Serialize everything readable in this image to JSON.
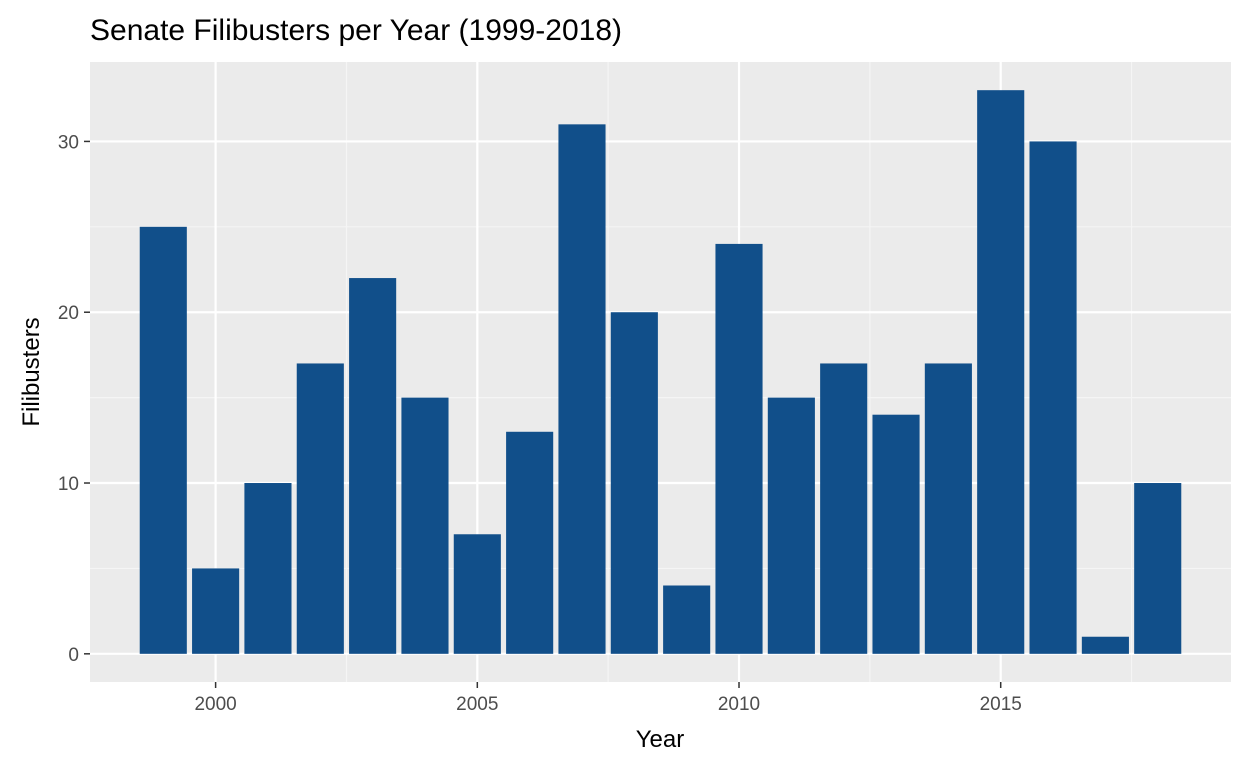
{
  "colors": {
    "panel_background": "#ebebeb",
    "grid_major": "#ffffff",
    "grid_minor": "#f5f5f5",
    "bar_fill": "#114f8a",
    "tick_mark": "#333333"
  },
  "chart_data": {
    "type": "bar",
    "title": "Senate Filibusters per Year (1999-2018)",
    "xlabel": "Year",
    "ylabel": "Filibusters",
    "x": [
      1999,
      2000,
      2001,
      2002,
      2003,
      2004,
      2005,
      2006,
      2007,
      2008,
      2009,
      2010,
      2011,
      2012,
      2013,
      2014,
      2015,
      2016,
      2017,
      2018
    ],
    "values": [
      25,
      5,
      10,
      17,
      22,
      15,
      7,
      13,
      31,
      20,
      4,
      24,
      15,
      17,
      14,
      17,
      33,
      30,
      1,
      10
    ],
    "x_ticks": [
      2000,
      2005,
      2010,
      2015
    ],
    "x_minor_ticks": [
      2002.5,
      2007.5,
      2012.5,
      2017.5
    ],
    "y_ticks": [
      0,
      10,
      20,
      30
    ],
    "y_minor_ticks": [
      5,
      15,
      25
    ],
    "xlim": [
      1997.6,
      2019.4
    ],
    "ylim": [
      -1.65,
      34.65
    ],
    "grid": true,
    "legend": "none"
  }
}
